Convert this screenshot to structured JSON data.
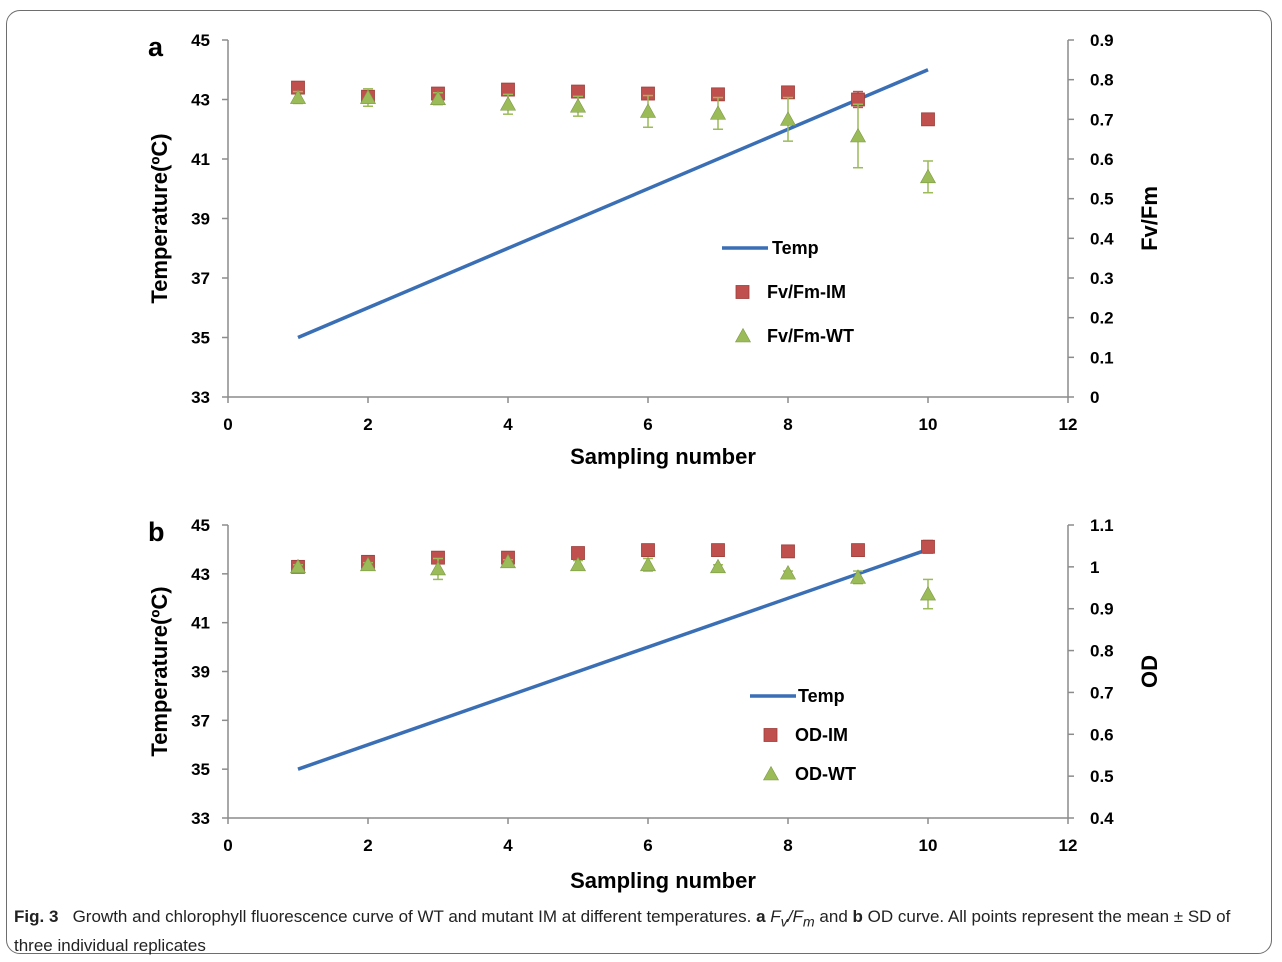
{
  "chart_data": [
    {
      "type": "line",
      "panel_label": "a",
      "xlabel": "Sampling number",
      "ylabel": "Temperature(ºC)",
      "ylabel_right": "Fv/Fm",
      "xlim": [
        0,
        12
      ],
      "xticks": [
        0,
        2,
        4,
        6,
        8,
        10,
        12
      ],
      "ylim": [
        33,
        45
      ],
      "yticks": [
        33,
        35,
        37,
        39,
        41,
        43,
        45
      ],
      "ylim_right": [
        0,
        0.9
      ],
      "yticks_right": [
        0,
        0.1,
        0.2,
        0.3,
        0.4,
        0.5,
        0.6,
        0.7,
        0.8,
        0.9
      ],
      "grid": false,
      "legend": "center-right",
      "x": [
        1,
        2,
        3,
        4,
        5,
        6,
        7,
        8,
        9,
        10
      ],
      "series": [
        {
          "name": "Temp",
          "kind": "line",
          "axis": "left",
          "color": "#3a6fb5",
          "x": [
            1,
            10
          ],
          "values": [
            35,
            44
          ]
        },
        {
          "name": "Fv/Fm-IM",
          "kind": "square",
          "axis": "right",
          "color": "#c0504d",
          "values": [
            0.78,
            0.757,
            0.765,
            0.775,
            0.77,
            0.765,
            0.763,
            0.768,
            0.75,
            0.7
          ],
          "error": [
            0.01,
            0.01,
            0.008,
            0.008,
            0.008,
            0.008,
            0.008,
            0.01,
            0.02,
            0.005
          ]
        },
        {
          "name": "Fv/Fm-WT",
          "kind": "triangle",
          "axis": "right",
          "color": "#9bbb59",
          "values": [
            0.755,
            0.755,
            0.752,
            0.738,
            0.733,
            0.72,
            0.715,
            0.7,
            0.658,
            0.555
          ],
          "error": [
            0.015,
            0.022,
            0.015,
            0.025,
            0.025,
            0.04,
            0.04,
            0.055,
            0.08,
            0.04
          ]
        }
      ]
    },
    {
      "type": "line",
      "panel_label": "b",
      "xlabel": "Sampling number",
      "ylabel": "Temperature(ºC)",
      "ylabel_right": "OD",
      "xlim": [
        0,
        12
      ],
      "xticks": [
        0,
        2,
        4,
        6,
        8,
        10,
        12
      ],
      "ylim": [
        33,
        45
      ],
      "yticks": [
        33,
        35,
        37,
        39,
        41,
        43,
        45
      ],
      "ylim_right": [
        0.4,
        1.1
      ],
      "yticks_right": [
        0.4,
        0.5,
        0.6,
        0.7,
        0.8,
        0.9,
        1,
        1.1
      ],
      "grid": false,
      "legend": "center-right",
      "x": [
        1,
        2,
        3,
        4,
        5,
        6,
        7,
        8,
        9,
        10
      ],
      "series": [
        {
          "name": "Temp",
          "kind": "line",
          "axis": "left",
          "color": "#3a6fb5",
          "x": [
            1,
            10
          ],
          "values": [
            35,
            44
          ]
        },
        {
          "name": "OD-IM",
          "kind": "square",
          "axis": "right",
          "color": "#c0504d",
          "values": [
            1.0,
            1.012,
            1.022,
            1.022,
            1.033,
            1.04,
            1.04,
            1.037,
            1.04,
            1.048
          ],
          "error": [
            0.005,
            0.005,
            0.005,
            0.005,
            0.005,
            0.005,
            0.005,
            0.005,
            0.005,
            0.015
          ]
        },
        {
          "name": "OD-WT",
          "kind": "triangle",
          "axis": "right",
          "color": "#9bbb59",
          "values": [
            1.0,
            1.005,
            0.995,
            1.012,
            1.005,
            1.005,
            1.0,
            0.985,
            0.975,
            0.935
          ],
          "error": [
            0.005,
            0.005,
            0.025,
            0.005,
            0.01,
            0.015,
            0.005,
            0.005,
            0.015,
            0.035
          ]
        }
      ]
    }
  ],
  "caption": {
    "fig_label": "Fig. 3",
    "text_1": "Growth and chlorophyll fluorescence curve of WT and mutant IM at different temperatures.",
    "label_a": "a",
    "fv": "F",
    "fv_sub": "v",
    "slash": "/",
    "fm": "F",
    "fm_sub": "m",
    "and": "and",
    "label_b": "b",
    "text_2": "OD curve. All points represent the mean ± SD of three individual replicates"
  }
}
